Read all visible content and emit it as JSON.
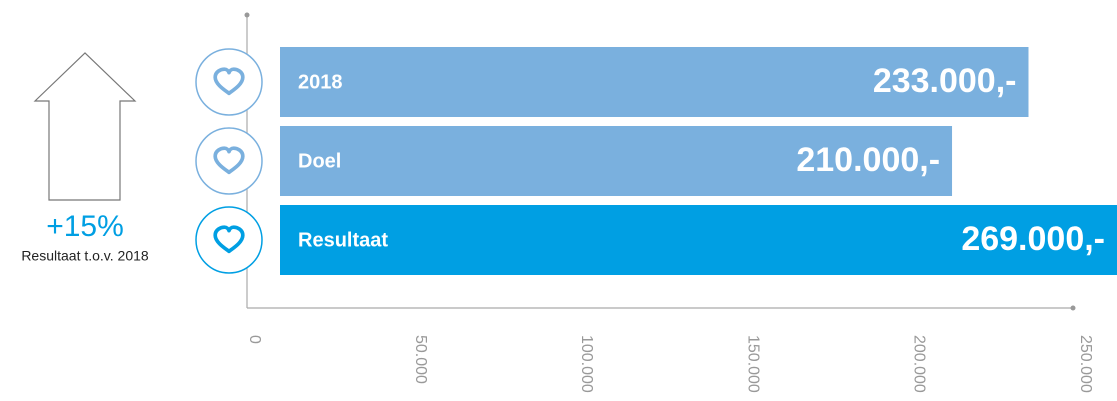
{
  "chart_data": {
    "type": "bar",
    "orientation": "horizontal",
    "categories": [
      "2018",
      "Doel",
      "Resultaat"
    ],
    "values": [
      233000,
      210000,
      269000
    ],
    "value_labels": [
      "233.000,-",
      "210.000,-",
      "269.000,-"
    ],
    "colors": [
      "#7ab0de",
      "#7ab0de",
      "#009fe3"
    ],
    "xlim": [
      0,
      250000
    ],
    "xticks": [
      0,
      {
        "value": 50000,
        "label": "50.000"
      },
      {
        "value": 100000,
        "label": "100.000"
      },
      {
        "value": 150000,
        "label": "150.000"
      },
      {
        "value": 200000,
        "label": "200.000"
      },
      {
        "value": 250000,
        "label": "250.000"
      }
    ],
    "grid": false,
    "annotation": "+15%",
    "annotation_caption": "Resultaat t.o.v. 2018"
  }
}
